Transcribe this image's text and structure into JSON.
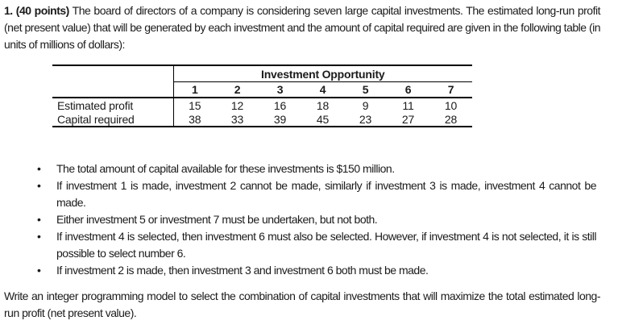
{
  "document": {
    "intro": {
      "bold_prefix": "1. (40 points)",
      "text": " The board of directors of a company is considering seven large capital investments. The estimated long-run profit (net present value) that will be generated by each investment and the amount of capital required are given in the following table (in units of millions of dollars):"
    },
    "table": {
      "group_header": "Investment Opportunity",
      "col_headers": [
        "1",
        "2",
        "3",
        "4",
        "5",
        "6",
        "7"
      ],
      "rows": [
        {
          "label": "Estimated profit",
          "values": [
            15,
            12,
            16,
            18,
            9,
            11,
            10
          ]
        },
        {
          "label": "Capital required",
          "values": [
            38,
            33,
            39,
            45,
            23,
            27,
            28
          ]
        }
      ]
    },
    "bullet_glyph": "•",
    "bullets": [
      "The total amount of capital available for these investments is $150 million.",
      "If investment 1 is made, investment 2 cannot be made, similarly if investment 3 is made, investment 4 cannot be made.",
      "Either investment 5 or investment 7 must be undertaken, but not both.",
      "If investment 4 is selected, then investment 6 must also be selected. However, if investment 4 is not selected, it is still possible to select number 6.",
      "If investment 2 is made, then investment 3 and investment 6 both must be made."
    ],
    "closing": "Write an integer programming model to select the combination of capital investments that will maximize the total estimated long-run profit (net present value).",
    "colors": {
      "text": "#1b1b1b",
      "background": "#ffffff",
      "table_border": "#000000"
    }
  }
}
